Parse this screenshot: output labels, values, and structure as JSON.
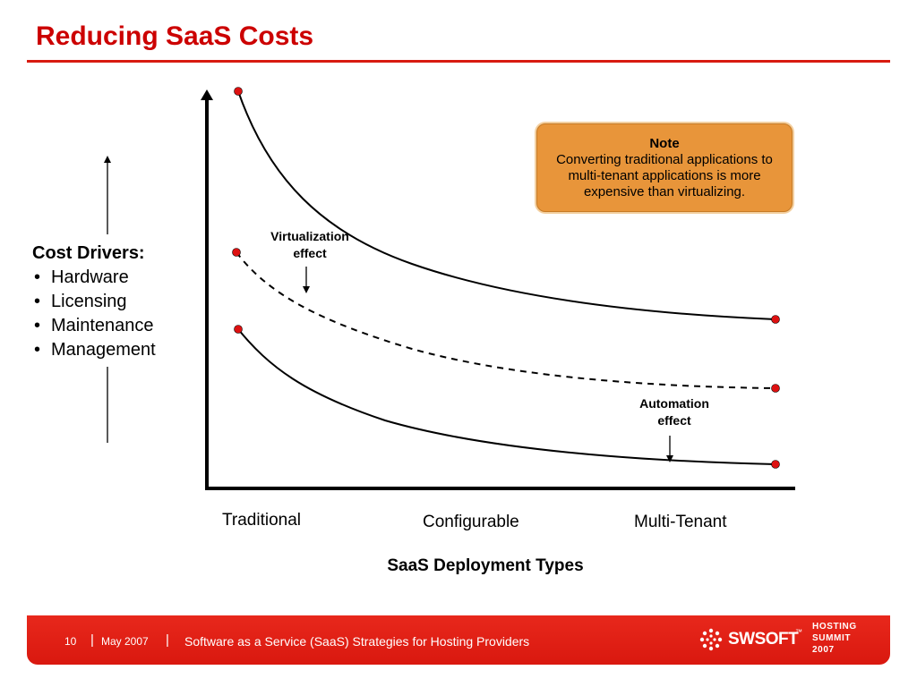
{
  "slide": {
    "title": "Reducing SaaS Costs"
  },
  "cost_drivers": {
    "title": "Cost Drivers:",
    "items": [
      "Hardware",
      "Licensing",
      "Maintenance",
      "Management"
    ]
  },
  "note": {
    "title": "Note",
    "body": "Converting traditional applications to multi-tenant applications is more expensive than virtualizing."
  },
  "annotations": {
    "virtualization": {
      "line1": "Virtualization",
      "line2": "effect"
    },
    "automation": {
      "line1": "Automation",
      "line2": "effect"
    }
  },
  "x_axis": {
    "categories": [
      "Traditional",
      "Configurable",
      "Multi-Tenant"
    ],
    "title": "SaaS Deployment Types"
  },
  "colors": {
    "accent_red": "#d81b10",
    "note_fill": "#e8953a",
    "marker_red": "#dd1111"
  },
  "footer": {
    "page_number": "10",
    "date": "May 2007",
    "presentation_title": "Software as a Service (SaaS) Strategies for Hosting Providers",
    "brand": "SWSOFT",
    "brand_mark": "™",
    "event_line1": "HOSTING",
    "event_line2": "SUMMIT",
    "event_line3": "2007"
  }
}
